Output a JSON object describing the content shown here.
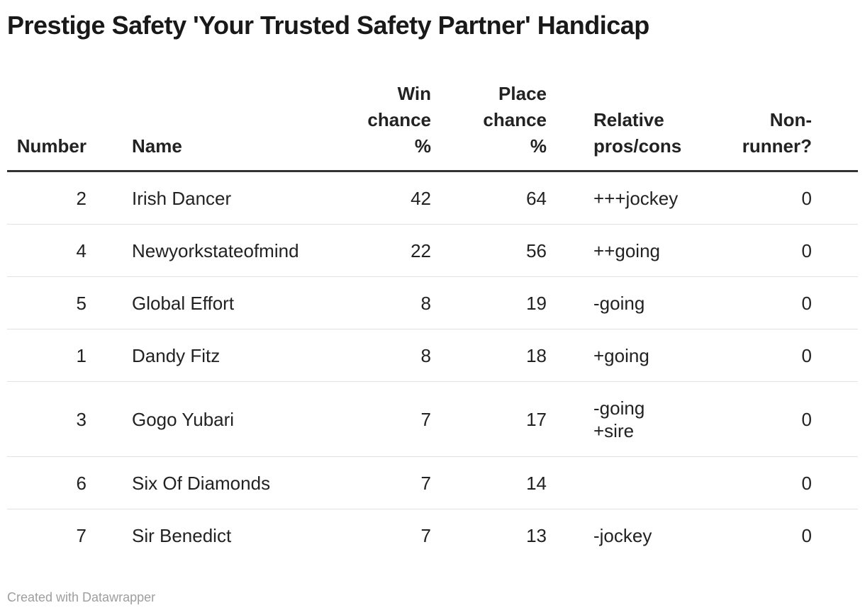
{
  "header": {
    "title": "Prestige Safety 'Your Trusted Safety Partner' Handicap"
  },
  "table": {
    "columns": [
      {
        "id": "number",
        "label": "Number"
      },
      {
        "id": "name",
        "label": "Name"
      },
      {
        "id": "win_chance_pct",
        "label": "Win\nchance\n%"
      },
      {
        "id": "place_chance_pct",
        "label": "Place\nchance\n%"
      },
      {
        "id": "relative_pros_cons",
        "label": "Relative\npros/cons"
      },
      {
        "id": "non_runner",
        "label": "Non-\nrunner?"
      }
    ],
    "rows": [
      {
        "number": "2",
        "name": "Irish Dancer",
        "win": "42",
        "place": "64",
        "pros_cons": "+++jockey",
        "non_runner": "0"
      },
      {
        "number": "4",
        "name": "Newyorkstateofmind",
        "win": "22",
        "place": "56",
        "pros_cons": "++going",
        "non_runner": "0"
      },
      {
        "number": "5",
        "name": "Global Effort",
        "win": "8",
        "place": "19",
        "pros_cons": "-going",
        "non_runner": "0"
      },
      {
        "number": "1",
        "name": "Dandy Fitz",
        "win": "8",
        "place": "18",
        "pros_cons": "+going",
        "non_runner": "0"
      },
      {
        "number": "3",
        "name": "Gogo Yubari",
        "win": "7",
        "place": "17",
        "pros_cons": "-going\n+sire",
        "non_runner": "0"
      },
      {
        "number": "6",
        "name": "Six Of Diamonds",
        "win": "7",
        "place": "14",
        "pros_cons": "",
        "non_runner": "0"
      },
      {
        "number": "7",
        "name": "Sir Benedict",
        "win": "7",
        "place": "13",
        "pros_cons": "-jockey",
        "non_runner": "0"
      }
    ]
  },
  "footer": {
    "attribution": "Created with Datawrapper"
  },
  "colors": {
    "title_text": "#191919",
    "body_text": "#222222",
    "header_rule": "#333333",
    "row_separator": "#e2e2e2",
    "footer_text": "#9e9e9e",
    "background": "#ffffff"
  },
  "chart_data": {
    "type": "table",
    "title": "Prestige Safety 'Your Trusted Safety Partner' Handicap",
    "columns": [
      "Number",
      "Name",
      "Win chance %",
      "Place chance %",
      "Relative pros/cons",
      "Non-runner?"
    ],
    "rows": [
      [
        2,
        "Irish Dancer",
        42,
        64,
        "+++jockey",
        0
      ],
      [
        4,
        "Newyorkstateofmind",
        22,
        56,
        "++going",
        0
      ],
      [
        5,
        "Global Effort",
        8,
        19,
        "-going",
        0
      ],
      [
        1,
        "Dandy Fitz",
        8,
        18,
        "+going",
        0
      ],
      [
        3,
        "Gogo Yubari",
        7,
        17,
        "-going +sire",
        0
      ],
      [
        6,
        "Six Of Diamonds",
        7,
        14,
        "",
        0
      ],
      [
        7,
        "Sir Benedict",
        7,
        13,
        "-jockey",
        0
      ]
    ],
    "layout_hints": {
      "numeric_columns_right_aligned": true,
      "header_vertical_align": "bottom",
      "grid": "horizontal-rules-only"
    }
  }
}
